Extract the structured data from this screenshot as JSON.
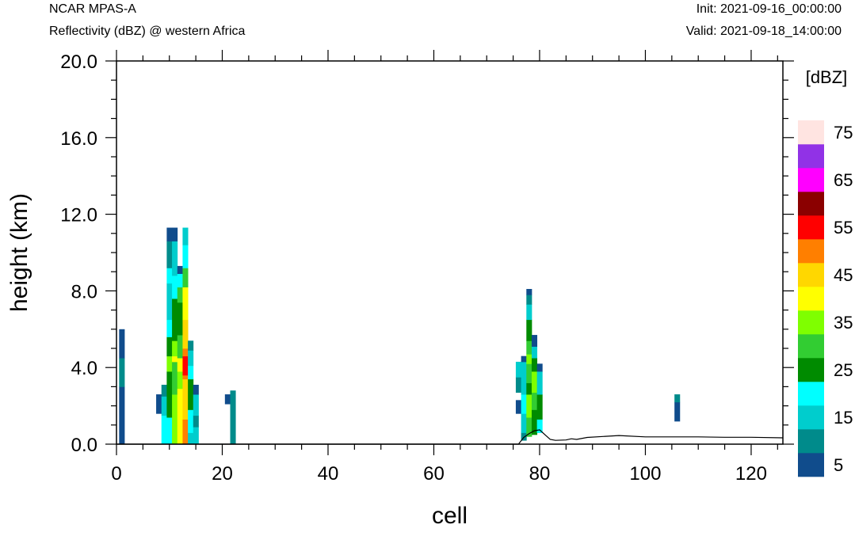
{
  "header": {
    "model": "NCAR MPAS-A",
    "field": "Reflectivity (dBZ) @ western Africa",
    "init": "Init: 2021-09-16_00:00:00",
    "valid": "Valid: 2021-09-18_14:00:00"
  },
  "chart_data": {
    "type": "heatmap",
    "xlabel": "cell",
    "ylabel": "height (km)",
    "xlim": [
      0,
      126
    ],
    "ylim": [
      0,
      20
    ],
    "x_ticks": [
      0,
      20,
      40,
      60,
      80,
      100,
      120
    ],
    "y_ticks": [
      "0.0",
      "4.0",
      "8.0",
      "12.0",
      "16.0",
      "20.0"
    ],
    "colorbar": {
      "units": "[dBZ]",
      "levels": [
        5,
        10,
        15,
        20,
        25,
        30,
        35,
        40,
        45,
        50,
        55,
        60,
        65,
        70,
        75
      ],
      "labels": [
        "5",
        "15",
        "25",
        "35",
        "45",
        "55",
        "65",
        "75"
      ],
      "colors": [
        "#104c8c",
        "#008b8b",
        "#00cdcd",
        "#00ffff",
        "#008b00",
        "#32cd32",
        "#7fff00",
        "#ffff00",
        "#ffd700",
        "#ff7f00",
        "#ff0000",
        "#8b0000",
        "#ff00ff",
        "#9132e6",
        "#ffe4e1"
      ]
    },
    "columns": [
      {
        "cell": 1,
        "cells": [
          [
            0,
            3,
            5
          ],
          [
            3,
            4.5,
            10
          ],
          [
            4.5,
            6,
            5
          ]
        ]
      },
      {
        "cell": 8,
        "cells": [
          [
            1.6,
            2.6,
            5
          ]
        ]
      },
      {
        "cell": 9,
        "cells": [
          [
            0,
            1.5,
            20
          ],
          [
            1.5,
            2.5,
            15
          ],
          [
            2.5,
            3.1,
            10
          ]
        ]
      },
      {
        "cell": 10,
        "cells": [
          [
            0,
            1.4,
            20
          ],
          [
            1.4,
            3.8,
            25
          ],
          [
            3.8,
            4.6,
            35
          ],
          [
            4.6,
            5.6,
            25
          ],
          [
            5.6,
            6.5,
            20
          ],
          [
            6.5,
            8.4,
            15
          ],
          [
            8.4,
            9.2,
            20
          ],
          [
            9.2,
            10.6,
            10
          ],
          [
            10.6,
            11.3,
            5
          ]
        ]
      },
      {
        "cell": 11,
        "cells": [
          [
            0,
            2.6,
            35
          ],
          [
            2.6,
            4.3,
            30
          ],
          [
            4.3,
            4.6,
            40
          ],
          [
            4.6,
            5.4,
            35
          ],
          [
            5.4,
            7.6,
            25
          ],
          [
            7.6,
            8.8,
            20
          ],
          [
            8.8,
            10.6,
            15
          ],
          [
            10.6,
            11.3,
            5
          ]
        ]
      },
      {
        "cell": 12,
        "cells": [
          [
            0,
            2.9,
            40
          ],
          [
            2.9,
            3.8,
            35
          ],
          [
            3.8,
            4.5,
            40
          ],
          [
            4.5,
            5.7,
            30
          ],
          [
            5.7,
            7.4,
            25
          ],
          [
            7.4,
            8.2,
            30
          ],
          [
            8.2,
            8.9,
            20
          ],
          [
            8.9,
            9.3,
            5
          ]
        ]
      },
      {
        "cell": 13,
        "cells": [
          [
            0,
            1.3,
            50
          ],
          [
            1.3,
            3.4,
            45
          ],
          [
            3.4,
            3.6,
            50
          ],
          [
            3.6,
            4.6,
            55
          ],
          [
            4.6,
            5.0,
            50
          ],
          [
            5.0,
            6.5,
            45
          ],
          [
            6.5,
            8.2,
            40
          ],
          [
            8.2,
            9.2,
            30
          ],
          [
            9.2,
            10.4,
            20
          ],
          [
            10.4,
            11.3,
            15
          ]
        ]
      },
      {
        "cell": 14,
        "cells": [
          [
            0,
            0.6,
            15
          ],
          [
            0.6,
            1.8,
            20
          ],
          [
            1.8,
            3.4,
            25
          ],
          [
            3.4,
            4.1,
            20
          ],
          [
            4.1,
            4.9,
            15
          ],
          [
            4.9,
            5.4,
            10
          ]
        ]
      },
      {
        "cell": 15,
        "cells": [
          [
            0,
            0.9,
            15
          ],
          [
            0.9,
            1.5,
            10
          ],
          [
            1.5,
            2.6,
            15
          ],
          [
            2.6,
            3.1,
            5
          ]
        ]
      },
      {
        "cell": 21,
        "cells": [
          [
            2.1,
            2.6,
            5
          ]
        ]
      },
      {
        "cell": 22,
        "cells": [
          [
            0,
            2.8,
            10
          ]
        ]
      },
      {
        "cell": 76,
        "cells": [
          [
            1.6,
            2.3,
            5
          ],
          [
            2.7,
            3.5,
            10
          ],
          [
            3.5,
            4.3,
            15
          ]
        ]
      },
      {
        "cell": 77,
        "cells": [
          [
            0.2,
            0.6,
            10
          ],
          [
            0.6,
            1.6,
            15
          ],
          [
            1.6,
            2.6,
            20
          ],
          [
            2.6,
            4.3,
            15
          ],
          [
            4.3,
            4.6,
            5
          ]
        ]
      },
      {
        "cell": 78,
        "cells": [
          [
            0.4,
            1.4,
            30
          ],
          [
            1.4,
            2.6,
            35
          ],
          [
            2.6,
            3.2,
            25
          ],
          [
            3.2,
            4.2,
            30
          ],
          [
            4.2,
            4.7,
            35
          ],
          [
            4.7,
            5.4,
            30
          ],
          [
            5.4,
            6.5,
            25
          ],
          [
            6.5,
            7.3,
            15
          ],
          [
            7.3,
            7.8,
            10
          ],
          [
            7.8,
            8.1,
            5
          ]
        ]
      },
      {
        "cell": 79,
        "cells": [
          [
            0.5,
            1.8,
            25
          ],
          [
            1.8,
            2.7,
            30
          ],
          [
            2.7,
            3.8,
            35
          ],
          [
            3.8,
            4.5,
            25
          ],
          [
            4.5,
            5.1,
            15
          ],
          [
            5.1,
            5.7,
            5
          ]
        ]
      },
      {
        "cell": 80,
        "cells": [
          [
            0.6,
            1.3,
            20
          ],
          [
            1.3,
            2.6,
            25
          ],
          [
            2.6,
            3.8,
            15
          ],
          [
            3.8,
            4.2,
            5
          ]
        ]
      },
      {
        "cell": 106,
        "cells": [
          [
            1.2,
            2.2,
            5
          ],
          [
            2.2,
            2.6,
            10
          ]
        ]
      }
    ],
    "terrain": [
      [
        0,
        0
      ],
      [
        76,
        0
      ],
      [
        77,
        0.35
      ],
      [
        78,
        0.55
      ],
      [
        79,
        0.7
      ],
      [
        80,
        0.75
      ],
      [
        81,
        0.5
      ],
      [
        82,
        0.25
      ],
      [
        83,
        0.2
      ],
      [
        85,
        0.22
      ],
      [
        86,
        0.28
      ],
      [
        87,
        0.25
      ],
      [
        89,
        0.35
      ],
      [
        95,
        0.45
      ],
      [
        100,
        0.38
      ],
      [
        110,
        0.38
      ],
      [
        115,
        0.36
      ],
      [
        120,
        0.36
      ],
      [
        126,
        0.33
      ]
    ]
  }
}
